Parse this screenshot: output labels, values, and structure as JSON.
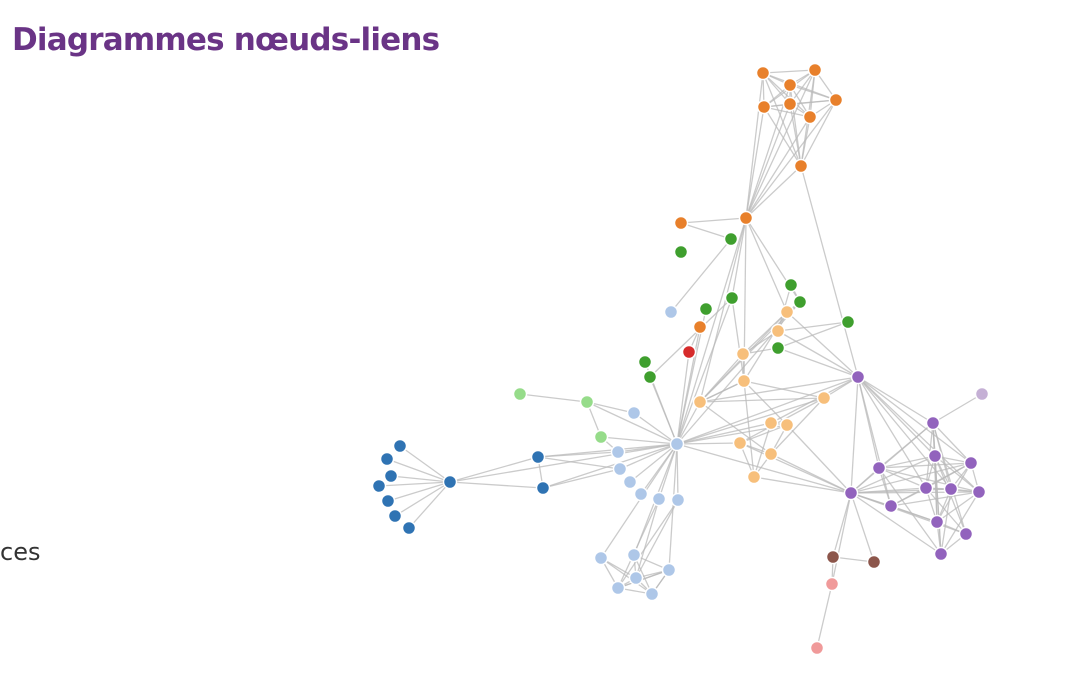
{
  "slide": {
    "title": "Diagrammes nœuds-liens",
    "left_text_fragment": "ces"
  },
  "diagram": {
    "type": "node-link",
    "group_colors": {
      "orange": "#e8802b",
      "green": "#3f9f2e",
      "light_green": "#96dc8a",
      "light_blue": "#aec7e8",
      "light_orange": "#f7bf7b",
      "purple": "#9263bd",
      "light_purple": "#c5b0d5",
      "dark_blue": "#2f73b3",
      "red": "#d62b2b",
      "brown": "#8c564b",
      "pink": "#f09a9a"
    },
    "nodes": [
      {
        "id": "o1",
        "group": "orange"
      },
      {
        "id": "o2",
        "group": "orange"
      },
      {
        "id": "o3",
        "group": "orange"
      },
      {
        "id": "o4",
        "group": "orange"
      },
      {
        "id": "o5",
        "group": "orange"
      },
      {
        "id": "o6",
        "group": "orange"
      },
      {
        "id": "o7",
        "group": "orange"
      },
      {
        "id": "o8",
        "group": "orange"
      },
      {
        "id": "o9",
        "group": "orange"
      },
      {
        "id": "o10",
        "group": "orange"
      },
      {
        "id": "o11",
        "group": "orange"
      },
      {
        "id": "g1",
        "group": "green"
      },
      {
        "id": "g2",
        "group": "green"
      },
      {
        "id": "g3",
        "group": "green"
      },
      {
        "id": "g4",
        "group": "green"
      },
      {
        "id": "g5",
        "group": "green"
      },
      {
        "id": "g6",
        "group": "green"
      },
      {
        "id": "g7",
        "group": "green"
      },
      {
        "id": "g8",
        "group": "green"
      },
      {
        "id": "g9",
        "group": "green"
      },
      {
        "id": "g10",
        "group": "green"
      },
      {
        "id": "g11",
        "group": "green"
      },
      {
        "id": "lg1",
        "group": "light_green"
      },
      {
        "id": "lg2",
        "group": "light_green"
      },
      {
        "id": "lg3",
        "group": "light_green"
      },
      {
        "id": "red1",
        "group": "red"
      },
      {
        "id": "lo1",
        "group": "light_orange"
      },
      {
        "id": "lo2",
        "group": "light_orange"
      },
      {
        "id": "lo3",
        "group": "light_orange"
      },
      {
        "id": "lo4",
        "group": "light_orange"
      },
      {
        "id": "lo5",
        "group": "light_orange"
      },
      {
        "id": "lo6",
        "group": "light_orange"
      },
      {
        "id": "lo7",
        "group": "light_orange"
      },
      {
        "id": "lo8",
        "group": "light_orange"
      },
      {
        "id": "lo9",
        "group": "light_orange"
      },
      {
        "id": "lo10",
        "group": "light_orange"
      },
      {
        "id": "lo11",
        "group": "light_orange"
      },
      {
        "id": "lo12",
        "group": "light_orange"
      },
      {
        "id": "lb1",
        "group": "light_blue"
      },
      {
        "id": "lb2",
        "group": "light_blue"
      },
      {
        "id": "lb3",
        "group": "light_blue"
      },
      {
        "id": "lb4",
        "group": "light_blue"
      },
      {
        "id": "lb5",
        "group": "light_blue"
      },
      {
        "id": "lb6",
        "group": "light_blue"
      },
      {
        "id": "lb7",
        "group": "light_blue"
      },
      {
        "id": "lb8",
        "group": "light_blue"
      },
      {
        "id": "lb9",
        "group": "light_blue"
      },
      {
        "id": "lb10",
        "group": "light_blue"
      },
      {
        "id": "lb11",
        "group": "light_blue"
      },
      {
        "id": "lb12",
        "group": "light_blue"
      },
      {
        "id": "lb13",
        "group": "light_blue"
      },
      {
        "id": "lb14",
        "group": "light_blue"
      },
      {
        "id": "lb15",
        "group": "light_blue"
      },
      {
        "id": "lb16",
        "group": "light_blue"
      },
      {
        "id": "db1",
        "group": "dark_blue"
      },
      {
        "id": "db2",
        "group": "dark_blue"
      },
      {
        "id": "db3",
        "group": "dark_blue"
      },
      {
        "id": "db4",
        "group": "dark_blue"
      },
      {
        "id": "db5",
        "group": "dark_blue"
      },
      {
        "id": "db6",
        "group": "dark_blue"
      },
      {
        "id": "db7",
        "group": "dark_blue"
      },
      {
        "id": "db8",
        "group": "dark_blue"
      },
      {
        "id": "db9",
        "group": "dark_blue"
      },
      {
        "id": "db10",
        "group": "dark_blue"
      },
      {
        "id": "p1",
        "group": "purple"
      },
      {
        "id": "p2",
        "group": "purple"
      },
      {
        "id": "p3",
        "group": "purple"
      },
      {
        "id": "p4",
        "group": "purple"
      },
      {
        "id": "p5",
        "group": "purple"
      },
      {
        "id": "p6",
        "group": "purple"
      },
      {
        "id": "p7",
        "group": "purple"
      },
      {
        "id": "p8",
        "group": "purple"
      },
      {
        "id": "p9",
        "group": "purple"
      },
      {
        "id": "p10",
        "group": "purple"
      },
      {
        "id": "p11",
        "group": "purple"
      },
      {
        "id": "p12",
        "group": "purple"
      },
      {
        "id": "p13",
        "group": "purple"
      },
      {
        "id": "lp1",
        "group": "light_purple"
      },
      {
        "id": "br1",
        "group": "brown"
      },
      {
        "id": "br2",
        "group": "brown"
      },
      {
        "id": "pk1",
        "group": "pink"
      },
      {
        "id": "pk2",
        "group": "pink"
      }
    ],
    "links": [
      [
        "o1",
        "o2"
      ],
      [
        "o1",
        "o3"
      ],
      [
        "o1",
        "o4"
      ],
      [
        "o1",
        "o5"
      ],
      [
        "o1",
        "o6"
      ],
      [
        "o1",
        "o7"
      ],
      [
        "o2",
        "o3"
      ],
      [
        "o2",
        "o4"
      ],
      [
        "o2",
        "o5"
      ],
      [
        "o2",
        "o6"
      ],
      [
        "o2",
        "o7"
      ],
      [
        "o3",
        "o4"
      ],
      [
        "o3",
        "o5"
      ],
      [
        "o3",
        "o6"
      ],
      [
        "o3",
        "o7"
      ],
      [
        "o4",
        "o5"
      ],
      [
        "o4",
        "o6"
      ],
      [
        "o4",
        "o7"
      ],
      [
        "o5",
        "o6"
      ],
      [
        "o5",
        "o7"
      ],
      [
        "o6",
        "o7"
      ],
      [
        "o1",
        "o8"
      ],
      [
        "o2",
        "o8"
      ],
      [
        "o3",
        "o8"
      ],
      [
        "o4",
        "o8"
      ],
      [
        "o5",
        "o8"
      ],
      [
        "o6",
        "o8"
      ],
      [
        "o7",
        "o8"
      ],
      [
        "o1",
        "o9"
      ],
      [
        "o2",
        "o9"
      ],
      [
        "o3",
        "o9"
      ],
      [
        "o4",
        "o9"
      ],
      [
        "o5",
        "o9"
      ],
      [
        "o6",
        "o9"
      ],
      [
        "o7",
        "o9"
      ],
      [
        "o8",
        "o9"
      ],
      [
        "o8",
        "p1"
      ],
      [
        "o9",
        "o10"
      ],
      [
        "o10",
        "g1"
      ],
      [
        "g1",
        "lb1"
      ],
      [
        "o9",
        "g2"
      ],
      [
        "o9",
        "lo1"
      ],
      [
        "o9",
        "lo4"
      ],
      [
        "o9",
        "lo5"
      ],
      [
        "o9",
        "lb5"
      ],
      [
        "o9",
        "g4"
      ],
      [
        "g2",
        "lb5"
      ],
      [
        "g2",
        "lo4"
      ],
      [
        "g2",
        "g9"
      ],
      [
        "g3",
        "g4"
      ],
      [
        "g3",
        "lo2"
      ],
      [
        "g4",
        "lo1"
      ],
      [
        "g4",
        "lb5"
      ],
      [
        "g4",
        "lo5"
      ],
      [
        "g5",
        "lb5"
      ],
      [
        "g6",
        "lo2"
      ],
      [
        "g6",
        "g7"
      ],
      [
        "g7",
        "lo3"
      ],
      [
        "g7",
        "p1"
      ],
      [
        "g8",
        "lb5"
      ],
      [
        "g9",
        "lb5"
      ],
      [
        "o11",
        "lb5"
      ],
      [
        "o11",
        "red1"
      ],
      [
        "red1",
        "lb5"
      ],
      [
        "lo1",
        "lo2"
      ],
      [
        "lo1",
        "lo3"
      ],
      [
        "lo1",
        "lo4"
      ],
      [
        "lo1",
        "lo5"
      ],
      [
        "lo1",
        "p1"
      ],
      [
        "lo2",
        "lo3"
      ],
      [
        "lo2",
        "p1"
      ],
      [
        "lo3",
        "lo4"
      ],
      [
        "lo3",
        "lo5"
      ],
      [
        "lo4",
        "lo5"
      ],
      [
        "lo4",
        "lo6"
      ],
      [
        "lo4",
        "lo8"
      ],
      [
        "lo4",
        "lo11"
      ],
      [
        "lo5",
        "lo6"
      ],
      [
        "lo5",
        "lo10"
      ],
      [
        "lo5",
        "lo12"
      ],
      [
        "lo5",
        "p1"
      ],
      [
        "lo5",
        "lb5"
      ],
      [
        "lo6",
        "lb5"
      ],
      [
        "lo6",
        "lo9"
      ],
      [
        "lo6",
        "lo10"
      ],
      [
        "lo6",
        "p1"
      ],
      [
        "lo7",
        "p1"
      ],
      [
        "lo7",
        "lb5"
      ],
      [
        "lo7",
        "lo8"
      ],
      [
        "lo7",
        "lo11"
      ],
      [
        "lo8",
        "lb5"
      ],
      [
        "lo8",
        "lo9"
      ],
      [
        "lo8",
        "lo10"
      ],
      [
        "lo8",
        "p2"
      ],
      [
        "lo9",
        "lo10"
      ],
      [
        "lo9",
        "lo11"
      ],
      [
        "lo9",
        "p2"
      ],
      [
        "lo9",
        "lb5"
      ],
      [
        "lo10",
        "lo11"
      ],
      [
        "lo10",
        "p2"
      ],
      [
        "lo11",
        "p2"
      ],
      [
        "lo12",
        "lo5"
      ],
      [
        "lo12",
        "lo4"
      ],
      [
        "lb5",
        "p1"
      ],
      [
        "lb5",
        "p2"
      ],
      [
        "lb5",
        "lg2"
      ],
      [
        "lb5",
        "lg3"
      ],
      [
        "lb5",
        "lb2"
      ],
      [
        "lb5",
        "lb3"
      ],
      [
        "lb5",
        "lb4"
      ],
      [
        "lb5",
        "lb6"
      ],
      [
        "lb5",
        "lb7"
      ],
      [
        "lb5",
        "lb8"
      ],
      [
        "lb5",
        "lb9"
      ],
      [
        "lb5",
        "db10"
      ],
      [
        "lb5",
        "db9"
      ],
      [
        "lb5",
        "db1"
      ],
      [
        "lb5",
        "lb10"
      ],
      [
        "lb5",
        "lb11"
      ],
      [
        "lb5",
        "lb12"
      ],
      [
        "lg1",
        "lg2"
      ],
      [
        "lg2",
        "lg3"
      ],
      [
        "lg2",
        "lb2"
      ],
      [
        "lg3",
        "lb3"
      ],
      [
        "db1",
        "db2"
      ],
      [
        "db1",
        "db3"
      ],
      [
        "db1",
        "db4"
      ],
      [
        "db1",
        "db5"
      ],
      [
        "db1",
        "db6"
      ],
      [
        "db1",
        "db7"
      ],
      [
        "db1",
        "db8"
      ],
      [
        "db1",
        "db9"
      ],
      [
        "db1",
        "db10"
      ],
      [
        "db9",
        "db10"
      ],
      [
        "db9",
        "lb3"
      ],
      [
        "db10",
        "lb4"
      ],
      [
        "db9",
        "lb4"
      ],
      [
        "lb9",
        "lb13"
      ],
      [
        "lb9",
        "lb14"
      ],
      [
        "lb10",
        "lb13"
      ],
      [
        "lb10",
        "lb14"
      ],
      [
        "lb10",
        "lb15"
      ],
      [
        "lb8",
        "lb13"
      ],
      [
        "lb8",
        "lb14"
      ],
      [
        "lb11",
        "lb15"
      ],
      [
        "lb11",
        "lb16"
      ],
      [
        "lb12",
        "lb16"
      ],
      [
        "lb12",
        "lb15"
      ],
      [
        "lb13",
        "lb14"
      ],
      [
        "lb13",
        "lb15"
      ],
      [
        "lb13",
        "lb16"
      ],
      [
        "lb14",
        "lb15"
      ],
      [
        "lb14",
        "lb16"
      ],
      [
        "lb15",
        "lb16"
      ],
      [
        "lb12",
        "lb14"
      ],
      [
        "lb11",
        "lb13"
      ],
      [
        "p1",
        "p2"
      ],
      [
        "p1",
        "p3"
      ],
      [
        "p1",
        "p4"
      ],
      [
        "p1",
        "p5"
      ],
      [
        "p1",
        "p6"
      ],
      [
        "p1",
        "p7"
      ],
      [
        "p1",
        "p8"
      ],
      [
        "p1",
        "p9"
      ],
      [
        "p1",
        "p10"
      ],
      [
        "p2",
        "p3"
      ],
      [
        "p2",
        "p4"
      ],
      [
        "p2",
        "p5"
      ],
      [
        "p2",
        "p6"
      ],
      [
        "p2",
        "p7"
      ],
      [
        "p2",
        "p8"
      ],
      [
        "p2",
        "p9"
      ],
      [
        "p2",
        "p10"
      ],
      [
        "p2",
        "p11"
      ],
      [
        "p2",
        "p12"
      ],
      [
        "p2",
        "p13"
      ],
      [
        "p2",
        "br1"
      ],
      [
        "p2",
        "br2"
      ],
      [
        "p2",
        "pk1"
      ],
      [
        "p3",
        "p4"
      ],
      [
        "p3",
        "p5"
      ],
      [
        "p3",
        "p6"
      ],
      [
        "p3",
        "p7"
      ],
      [
        "p3",
        "p9"
      ],
      [
        "p3",
        "p10"
      ],
      [
        "p3",
        "p13"
      ],
      [
        "p4",
        "p5"
      ],
      [
        "p4",
        "p6"
      ],
      [
        "p4",
        "p7"
      ],
      [
        "p4",
        "p8"
      ],
      [
        "p4",
        "p11"
      ],
      [
        "p4",
        "p12"
      ],
      [
        "p4",
        "p13"
      ],
      [
        "p4",
        "lp1"
      ],
      [
        "p5",
        "p6"
      ],
      [
        "p5",
        "p7"
      ],
      [
        "p5",
        "p8"
      ],
      [
        "p5",
        "p9"
      ],
      [
        "p5",
        "p11"
      ],
      [
        "p5",
        "p12"
      ],
      [
        "p5",
        "p13"
      ],
      [
        "p6",
        "p7"
      ],
      [
        "p6",
        "p8"
      ],
      [
        "p6",
        "p9"
      ],
      [
        "p6",
        "p10"
      ],
      [
        "p6",
        "p11"
      ],
      [
        "p7",
        "p8"
      ],
      [
        "p7",
        "p9"
      ],
      [
        "p7",
        "p10"
      ],
      [
        "p7",
        "p11"
      ],
      [
        "p7",
        "p12"
      ],
      [
        "p8",
        "p9"
      ],
      [
        "p8",
        "p11"
      ],
      [
        "p8",
        "p13"
      ],
      [
        "p9",
        "p10"
      ],
      [
        "p9",
        "p11"
      ],
      [
        "p9",
        "p13"
      ],
      [
        "p10",
        "p11"
      ],
      [
        "p11",
        "p12"
      ],
      [
        "p11",
        "p13"
      ],
      [
        "p12",
        "p13"
      ],
      [
        "br1",
        "br2"
      ],
      [
        "br1",
        "pk1"
      ],
      [
        "pk1",
        "pk2"
      ]
    ]
  }
}
